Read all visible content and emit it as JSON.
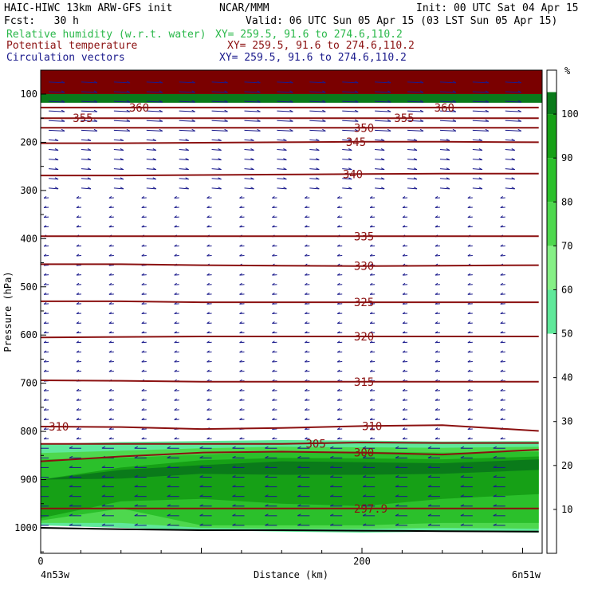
{
  "header": {
    "title": "HAIC-HIWC 13km ARW-GFS init",
    "agency": "NCAR/MMM",
    "init": "Init: 00 UTC Sat 04 Apr 15",
    "fcst": "Fcst:   30 h",
    "valid": "Valid: 06 UTC Sun 05 Apr 15 (03 LST Sun 05 Apr 15)",
    "line1_label": "Relative humidity (w.r.t. water)",
    "line1_xy": "XY= 259.5, 91.6 to 274.6,110.2",
    "line2_label": "Potential temperature",
    "line2_xy": "XY= 259.5, 91.6 to 274.6,110.2",
    "line3_label": "Circulation vectors",
    "line3_xy": "XY= 259.5, 91.6 to 274.6,110.2"
  },
  "colors": {
    "rh": "#2ab84a",
    "theta": "#8b1010",
    "vectors": "#1a1a8c",
    "rh_fills": [
      "#ffffff",
      "#5fe89a",
      "#fa8080",
      "#86f086",
      "#4ed84e",
      "#2bc02b",
      "#16a016",
      "#0a7a1a",
      "#fa8080"
    ]
  },
  "chart_data": {
    "type": "cross-section",
    "title": "",
    "xlabel": "Distance (km)",
    "ylabel": "Pressure (hPa)",
    "x_ticks": [
      "0",
      "200"
    ],
    "x_range": [
      0,
      310
    ],
    "y_ticks": [
      "100",
      "200",
      "300",
      "400",
      "500",
      "600",
      "700",
      "800",
      "900",
      "1000"
    ],
    "y_range": [
      1050,
      50
    ],
    "left_endpoint_label": "4n53w",
    "right_endpoint_label": "6n51w",
    "colorbar": {
      "unit": "%",
      "ticks": [
        "10",
        "20",
        "30",
        "40",
        "50",
        "60",
        "70",
        "80",
        "90",
        "100"
      ],
      "levels": [
        0,
        50,
        60,
        70,
        80,
        90,
        100,
        105
      ],
      "colors": [
        "#ffffff",
        "#5fe89a",
        "#86f086",
        "#4ed84e",
        "#2bc02b",
        "#16a016",
        "#0a7a1a",
        "#fa8080"
      ]
    },
    "theta_contours": [
      {
        "label": "360",
        "p": 128,
        "dp": [
          0,
          0,
          0,
          0,
          0,
          0,
          0
        ],
        "labels_at": [
          55,
          245
        ]
      },
      {
        "label": "355",
        "p": 150,
        "dp": [
          0,
          0,
          0,
          0,
          0,
          0,
          0
        ],
        "labels_at": [
          20,
          220
        ]
      },
      {
        "label": "350",
        "p": 170,
        "dp": [
          0,
          0,
          0,
          0,
          0,
          0,
          0
        ],
        "labels_at": [
          195
        ]
      },
      {
        "label": "345",
        "p": 200,
        "dp": [
          2,
          2,
          1,
          0,
          -1,
          -1,
          0
        ],
        "labels_at": [
          190
        ]
      },
      {
        "label": "340",
        "p": 265,
        "dp": [
          4,
          4,
          3,
          2,
          1,
          0,
          0
        ],
        "labels_at": [
          188
        ]
      },
      {
        "label": "335",
        "p": 395,
        "dp": [
          0,
          0,
          0,
          0,
          0,
          0,
          0
        ],
        "labels_at": [
          195
        ]
      },
      {
        "label": "330",
        "p": 455,
        "dp": [
          -2,
          -2,
          0,
          1,
          2,
          1,
          0
        ],
        "labels_at": [
          195
        ]
      },
      {
        "label": "325",
        "p": 532,
        "dp": [
          -2,
          -2,
          0,
          0,
          0,
          0,
          0
        ],
        "labels_at": [
          195
        ]
      },
      {
        "label": "320",
        "p": 603,
        "dp": [
          2,
          1,
          0,
          0,
          0,
          0,
          0
        ],
        "labels_at": [
          195
        ]
      },
      {
        "label": "315",
        "p": 697,
        "dp": [
          -3,
          -2,
          0,
          0,
          0,
          0,
          0
        ],
        "labels_at": [
          195
        ]
      },
      {
        "label": "310",
        "p": 795,
        "dp": [
          -5,
          -4,
          0,
          -2,
          -6,
          -8,
          4
        ],
        "labels_at": [
          5,
          200
        ]
      },
      {
        "label": "305",
        "p": 826,
        "dp": [
          0,
          0,
          0,
          0,
          -3,
          -2,
          -2
        ],
        "labels_at": [
          165
        ]
      },
      {
        "label": "300",
        "p": 862,
        "dp": [
          0,
          -10,
          -18,
          -20,
          -18,
          -14,
          -24
        ],
        "labels_at": [
          195
        ]
      },
      {
        "label": "297.9",
        "p": 960,
        "dp": [
          0,
          0,
          0,
          0,
          0,
          0,
          0
        ],
        "labels_at": [
          195
        ]
      }
    ],
    "rh_bands": [
      {
        "rh": 55,
        "top": [
          826,
          822,
          820,
          818,
          819,
          821,
          820
        ],
        "bottom": [
          995,
          1000,
          1005,
          1008,
          1010,
          1008,
          1010
        ]
      },
      {
        "rh": 75,
        "top": [
          845,
          840,
          835,
          832,
          833,
          834,
          832
        ],
        "bottom": [
          990,
          990,
          1000,
          1002,
          1002,
          1000,
          1002
        ]
      },
      {
        "rh": 85,
        "top": [
          858,
          855,
          848,
          842,
          842,
          844,
          842
        ],
        "bottom": [
          985,
          960,
          995,
          995,
          995,
          990,
          990
        ]
      },
      {
        "rh": 95,
        "top": [
          900,
          875,
          860,
          855,
          856,
          858,
          852
        ],
        "bottom": [
          980,
          945,
          940,
          950,
          955,
          940,
          930
        ]
      },
      {
        "rh": 102,
        "top": [
          900,
          880,
          870,
          862,
          864,
          866,
          858
        ],
        "bottom": [
          900,
          898,
          888,
          890,
          890,
          888,
          880
        ]
      }
    ],
    "surface_pressure": [
      1000,
      1003,
      1005,
      1005,
      1006,
      1007,
      1008
    ],
    "wind_vectors": {
      "upper_levels": [
        75,
        95,
        115,
        135,
        155,
        175,
        195,
        215,
        235,
        255,
        275,
        295
      ],
      "upper_direction": "eastward",
      "mid_lower_direction": "westward"
    }
  }
}
